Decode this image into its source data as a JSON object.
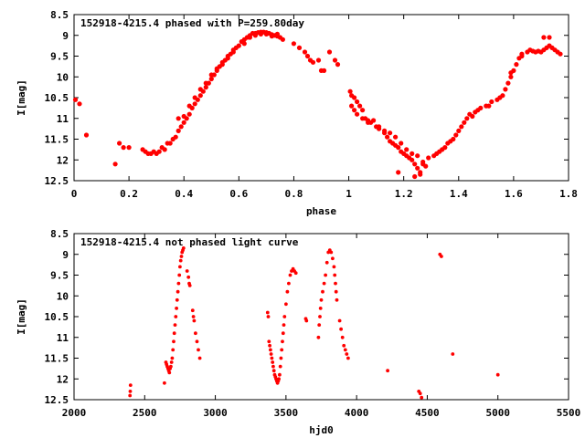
{
  "chart_data": [
    {
      "type": "scatter",
      "title": "152918-4215.4 phased with P=259.80day",
      "xlabel": "phase",
      "ylabel": "I[mag]",
      "xlim": [
        0,
        1.8
      ],
      "ylim": [
        12.5,
        8.5
      ],
      "y_inverted": true,
      "xticks": [
        "0",
        "0.2",
        "0.4",
        "0.6",
        "0.8",
        "1",
        "1.2",
        "1.4",
        "1.6",
        "1.8"
      ],
      "yticks": [
        "8.5",
        "9",
        "9.5",
        "10",
        "10.5",
        "11",
        "11.5",
        "12",
        "12.5"
      ],
      "grid": false,
      "marker_color": "#ff0000",
      "points": [
        [
          0.005,
          10.55
        ],
        [
          0.02,
          10.65
        ],
        [
          0.045,
          11.4
        ],
        [
          0.15,
          12.1
        ],
        [
          0.165,
          11.6
        ],
        [
          0.18,
          11.7
        ],
        [
          0.2,
          11.7
        ],
        [
          0.25,
          11.75
        ],
        [
          0.26,
          11.8
        ],
        [
          0.27,
          11.85
        ],
        [
          0.28,
          11.85
        ],
        [
          0.29,
          11.8
        ],
        [
          0.3,
          11.85
        ],
        [
          0.31,
          11.8
        ],
        [
          0.32,
          11.7
        ],
        [
          0.33,
          11.75
        ],
        [
          0.34,
          11.6
        ],
        [
          0.35,
          11.6
        ],
        [
          0.36,
          11.5
        ],
        [
          0.37,
          11.45
        ],
        [
          0.38,
          11.3
        ],
        [
          0.39,
          11.2
        ],
        [
          0.4,
          11.1
        ],
        [
          0.41,
          11.0
        ],
        [
          0.42,
          10.9
        ],
        [
          0.43,
          10.75
        ],
        [
          0.44,
          10.65
        ],
        [
          0.45,
          10.55
        ],
        [
          0.46,
          10.45
        ],
        [
          0.47,
          10.35
        ],
        [
          0.48,
          10.25
        ],
        [
          0.49,
          10.15
        ],
        [
          0.5,
          10.05
        ],
        [
          0.51,
          9.95
        ],
        [
          0.52,
          9.85
        ],
        [
          0.53,
          9.75
        ],
        [
          0.54,
          9.7
        ],
        [
          0.55,
          9.6
        ],
        [
          0.56,
          9.5
        ],
        [
          0.57,
          9.45
        ],
        [
          0.58,
          9.35
        ],
        [
          0.59,
          9.3
        ],
        [
          0.6,
          9.25
        ],
        [
          0.61,
          9.15
        ],
        [
          0.62,
          9.1
        ],
        [
          0.63,
          9.05
        ],
        [
          0.64,
          9.0
        ],
        [
          0.65,
          8.95
        ],
        [
          0.66,
          8.95
        ],
        [
          0.67,
          8.93
        ],
        [
          0.68,
          8.92
        ],
        [
          0.69,
          8.92
        ],
        [
          0.7,
          8.93
        ],
        [
          0.71,
          8.95
        ],
        [
          0.72,
          8.98
        ],
        [
          0.73,
          9.0
        ],
        [
          0.74,
          9.02
        ],
        [
          0.75,
          9.05
        ],
        [
          0.76,
          9.1
        ],
        [
          0.38,
          11.0
        ],
        [
          0.4,
          10.95
        ],
        [
          0.42,
          10.7
        ],
        [
          0.44,
          10.5
        ],
        [
          0.46,
          10.3
        ],
        [
          0.48,
          10.15
        ],
        [
          0.5,
          9.95
        ],
        [
          0.52,
          9.8
        ],
        [
          0.54,
          9.65
        ],
        [
          0.56,
          9.55
        ],
        [
          0.58,
          9.4
        ],
        [
          0.62,
          9.2
        ],
        [
          0.64,
          9.05
        ],
        [
          0.66,
          9.0
        ],
        [
          0.68,
          8.97
        ],
        [
          0.7,
          8.97
        ],
        [
          0.72,
          9.02
        ],
        [
          0.74,
          8.97
        ],
        [
          0.8,
          9.2
        ],
        [
          0.82,
          9.3
        ],
        [
          0.84,
          9.4
        ],
        [
          0.85,
          9.5
        ],
        [
          0.86,
          9.6
        ],
        [
          0.87,
          9.65
        ],
        [
          0.89,
          9.6
        ],
        [
          0.9,
          9.85
        ],
        [
          0.91,
          9.85
        ],
        [
          0.93,
          9.4
        ],
        [
          0.95,
          9.6
        ],
        [
          0.96,
          9.7
        ],
        [
          1.005,
          10.35
        ],
        [
          1.01,
          10.45
        ],
        [
          1.02,
          10.5
        ],
        [
          1.03,
          10.6
        ],
        [
          1.04,
          10.7
        ],
        [
          1.05,
          10.8
        ],
        [
          1.06,
          11.0
        ],
        [
          1.07,
          11.05
        ],
        [
          1.08,
          11.1
        ],
        [
          1.1,
          11.2
        ],
        [
          1.11,
          11.25
        ],
        [
          1.13,
          11.35
        ],
        [
          1.14,
          11.45
        ],
        [
          1.15,
          11.55
        ],
        [
          1.16,
          11.6
        ],
        [
          1.17,
          11.65
        ],
        [
          1.18,
          11.7
        ],
        [
          1.19,
          11.8
        ],
        [
          1.2,
          11.85
        ],
        [
          1.21,
          11.9
        ],
        [
          1.22,
          11.95
        ],
        [
          1.23,
          12.0
        ],
        [
          1.24,
          12.1
        ],
        [
          1.25,
          12.2
        ],
        [
          1.26,
          12.35
        ],
        [
          1.27,
          12.1
        ],
        [
          1.28,
          12.15
        ],
        [
          1.01,
          10.7
        ],
        [
          1.02,
          10.8
        ],
        [
          1.03,
          10.9
        ],
        [
          1.05,
          11.0
        ],
        [
          1.07,
          11.1
        ],
        [
          1.09,
          11.05
        ],
        [
          1.11,
          11.2
        ],
        [
          1.13,
          11.3
        ],
        [
          1.15,
          11.35
        ],
        [
          1.17,
          11.45
        ],
        [
          1.19,
          11.6
        ],
        [
          1.21,
          11.75
        ],
        [
          1.23,
          11.85
        ],
        [
          1.25,
          11.9
        ],
        [
          1.27,
          12.05
        ],
        [
          1.18,
          12.3
        ],
        [
          1.24,
          12.4
        ],
        [
          1.26,
          12.3
        ],
        [
          1.29,
          11.95
        ],
        [
          1.31,
          11.9
        ],
        [
          1.32,
          11.85
        ],
        [
          1.33,
          11.8
        ],
        [
          1.34,
          11.75
        ],
        [
          1.35,
          11.7
        ],
        [
          1.36,
          11.6
        ],
        [
          1.37,
          11.55
        ],
        [
          1.38,
          11.5
        ],
        [
          1.39,
          11.4
        ],
        [
          1.4,
          11.3
        ],
        [
          1.41,
          11.2
        ],
        [
          1.42,
          11.1
        ],
        [
          1.43,
          11.0
        ],
        [
          1.44,
          10.9
        ],
        [
          1.45,
          10.95
        ],
        [
          1.46,
          10.85
        ],
        [
          1.47,
          10.8
        ],
        [
          1.48,
          10.75
        ],
        [
          1.5,
          10.7
        ],
        [
          1.52,
          10.6
        ],
        [
          1.54,
          10.55
        ],
        [
          1.56,
          10.45
        ],
        [
          1.57,
          10.3
        ],
        [
          1.58,
          10.15
        ],
        [
          1.59,
          10.0
        ],
        [
          1.6,
          9.85
        ],
        [
          1.61,
          9.7
        ],
        [
          1.62,
          9.55
        ],
        [
          1.63,
          9.5
        ],
        [
          1.65,
          9.4
        ],
        [
          1.66,
          9.35
        ],
        [
          1.67,
          9.38
        ],
        [
          1.68,
          9.4
        ],
        [
          1.69,
          9.38
        ],
        [
          1.7,
          9.4
        ],
        [
          1.71,
          9.35
        ],
        [
          1.72,
          9.3
        ],
        [
          1.73,
          9.25
        ],
        [
          1.74,
          9.3
        ],
        [
          1.75,
          9.35
        ],
        [
          1.76,
          9.4
        ],
        [
          1.77,
          9.45
        ],
        [
          1.71,
          9.05
        ],
        [
          1.73,
          9.05
        ],
        [
          1.51,
          10.7
        ],
        [
          1.55,
          10.5
        ],
        [
          1.59,
          9.9
        ],
        [
          1.63,
          9.45
        ]
      ]
    },
    {
      "type": "scatter",
      "title": "152918-4215.4 not phased light curve",
      "xlabel": "hjd0",
      "ylabel": "I[mag]",
      "xlim": [
        2000,
        5500
      ],
      "ylim": [
        12.5,
        8.5
      ],
      "y_inverted": true,
      "xticks": [
        "2000",
        "2500",
        "3000",
        "3500",
        "4000",
        "4500",
        "5000",
        "5500"
      ],
      "yticks": [
        "8.5",
        "9",
        "9.5",
        "10",
        "10.5",
        "11",
        "11.5",
        "12",
        "12.5"
      ],
      "grid": false,
      "marker_color": "#ff0000",
      "points": [
        [
          2400,
          12.15
        ],
        [
          2398,
          12.3
        ],
        [
          2396,
          12.4
        ],
        [
          2640,
          12.1
        ],
        [
          2650,
          11.6
        ],
        [
          2655,
          11.65
        ],
        [
          2660,
          11.7
        ],
        [
          2665,
          11.75
        ],
        [
          2670,
          11.8
        ],
        [
          2675,
          11.85
        ],
        [
          2680,
          11.75
        ],
        [
          2685,
          11.7
        ],
        [
          2690,
          11.6
        ],
        [
          2695,
          11.5
        ],
        [
          2700,
          11.3
        ],
        [
          2705,
          11.1
        ],
        [
          2710,
          10.9
        ],
        [
          2715,
          10.7
        ],
        [
          2720,
          10.5
        ],
        [
          2725,
          10.3
        ],
        [
          2730,
          10.1
        ],
        [
          2735,
          9.9
        ],
        [
          2740,
          9.7
        ],
        [
          2745,
          9.5
        ],
        [
          2750,
          9.3
        ],
        [
          2755,
          9.15
        ],
        [
          2760,
          9.05
        ],
        [
          2765,
          8.95
        ],
        [
          2770,
          8.9
        ],
        [
          2775,
          8.85
        ],
        [
          2800,
          9.4
        ],
        [
          2810,
          9.55
        ],
        [
          2815,
          9.7
        ],
        [
          2820,
          9.75
        ],
        [
          2840,
          10.35
        ],
        [
          2845,
          10.5
        ],
        [
          2850,
          10.6
        ],
        [
          2860,
          10.9
        ],
        [
          2870,
          11.1
        ],
        [
          2880,
          11.3
        ],
        [
          2890,
          11.5
        ],
        [
          3370,
          10.4
        ],
        [
          3375,
          10.5
        ],
        [
          3380,
          11.1
        ],
        [
          3385,
          11.2
        ],
        [
          3390,
          11.3
        ],
        [
          3395,
          11.4
        ],
        [
          3400,
          11.5
        ],
        [
          3405,
          11.6
        ],
        [
          3410,
          11.7
        ],
        [
          3415,
          11.8
        ],
        [
          3420,
          11.9
        ],
        [
          3425,
          11.95
        ],
        [
          3430,
          12.0
        ],
        [
          3435,
          12.05
        ],
        [
          3440,
          12.1
        ],
        [
          3445,
          12.05
        ],
        [
          3450,
          12.0
        ],
        [
          3455,
          11.9
        ],
        [
          3460,
          11.7
        ],
        [
          3465,
          11.5
        ],
        [
          3470,
          11.3
        ],
        [
          3475,
          11.1
        ],
        [
          3480,
          10.9
        ],
        [
          3485,
          10.7
        ],
        [
          3490,
          10.5
        ],
        [
          3500,
          10.2
        ],
        [
          3510,
          9.9
        ],
        [
          3520,
          9.7
        ],
        [
          3530,
          9.5
        ],
        [
          3540,
          9.4
        ],
        [
          3550,
          9.35
        ],
        [
          3560,
          9.4
        ],
        [
          3570,
          9.45
        ],
        [
          3640,
          10.55
        ],
        [
          3645,
          10.6
        ],
        [
          3730,
          11.0
        ],
        [
          3735,
          10.7
        ],
        [
          3740,
          10.5
        ],
        [
          3745,
          10.3
        ],
        [
          3750,
          10.1
        ],
        [
          3760,
          9.9
        ],
        [
          3770,
          9.7
        ],
        [
          3780,
          9.5
        ],
        [
          3790,
          9.2
        ],
        [
          3800,
          8.95
        ],
        [
          3810,
          8.9
        ],
        [
          3820,
          8.95
        ],
        [
          3830,
          9.1
        ],
        [
          3840,
          9.3
        ],
        [
          3845,
          9.5
        ],
        [
          3850,
          9.7
        ],
        [
          3855,
          9.9
        ],
        [
          3860,
          10.1
        ],
        [
          3880,
          10.6
        ],
        [
          3890,
          10.8
        ],
        [
          3900,
          11.0
        ],
        [
          3910,
          11.2
        ],
        [
          3920,
          11.3
        ],
        [
          3930,
          11.4
        ],
        [
          3940,
          11.5
        ],
        [
          4220,
          11.8
        ],
        [
          4440,
          12.3
        ],
        [
          4450,
          12.35
        ],
        [
          4460,
          12.45
        ],
        [
          4590,
          9.0
        ],
        [
          4600,
          9.05
        ],
        [
          4680,
          11.4
        ],
        [
          5000,
          11.9
        ]
      ]
    }
  ]
}
